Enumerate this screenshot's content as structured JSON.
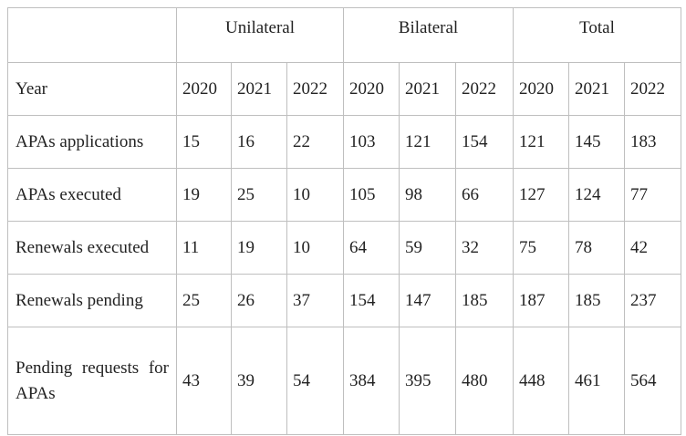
{
  "table": {
    "groups": [
      "Unilateral",
      "Bilateral",
      "Total"
    ],
    "header": [
      "Year",
      2020,
      2021,
      2022,
      2020,
      2021,
      2022,
      2020,
      2021,
      2022
    ],
    "rows": [
      [
        "APAs applications",
        15,
        16,
        22,
        103,
        121,
        154,
        121,
        145,
        183
      ],
      [
        "APAs executed",
        19,
        25,
        10,
        105,
        98,
        66,
        127,
        124,
        77
      ],
      [
        "Renewals executed",
        11,
        19,
        10,
        64,
        59,
        32,
        75,
        78,
        42
      ],
      [
        "Renewals pending",
        25,
        26,
        37,
        154,
        147,
        185,
        187,
        185,
        237
      ],
      [
        "Pending requests for APAs",
        43,
        39,
        54,
        384,
        395,
        480,
        448,
        461,
        564
      ]
    ]
  }
}
